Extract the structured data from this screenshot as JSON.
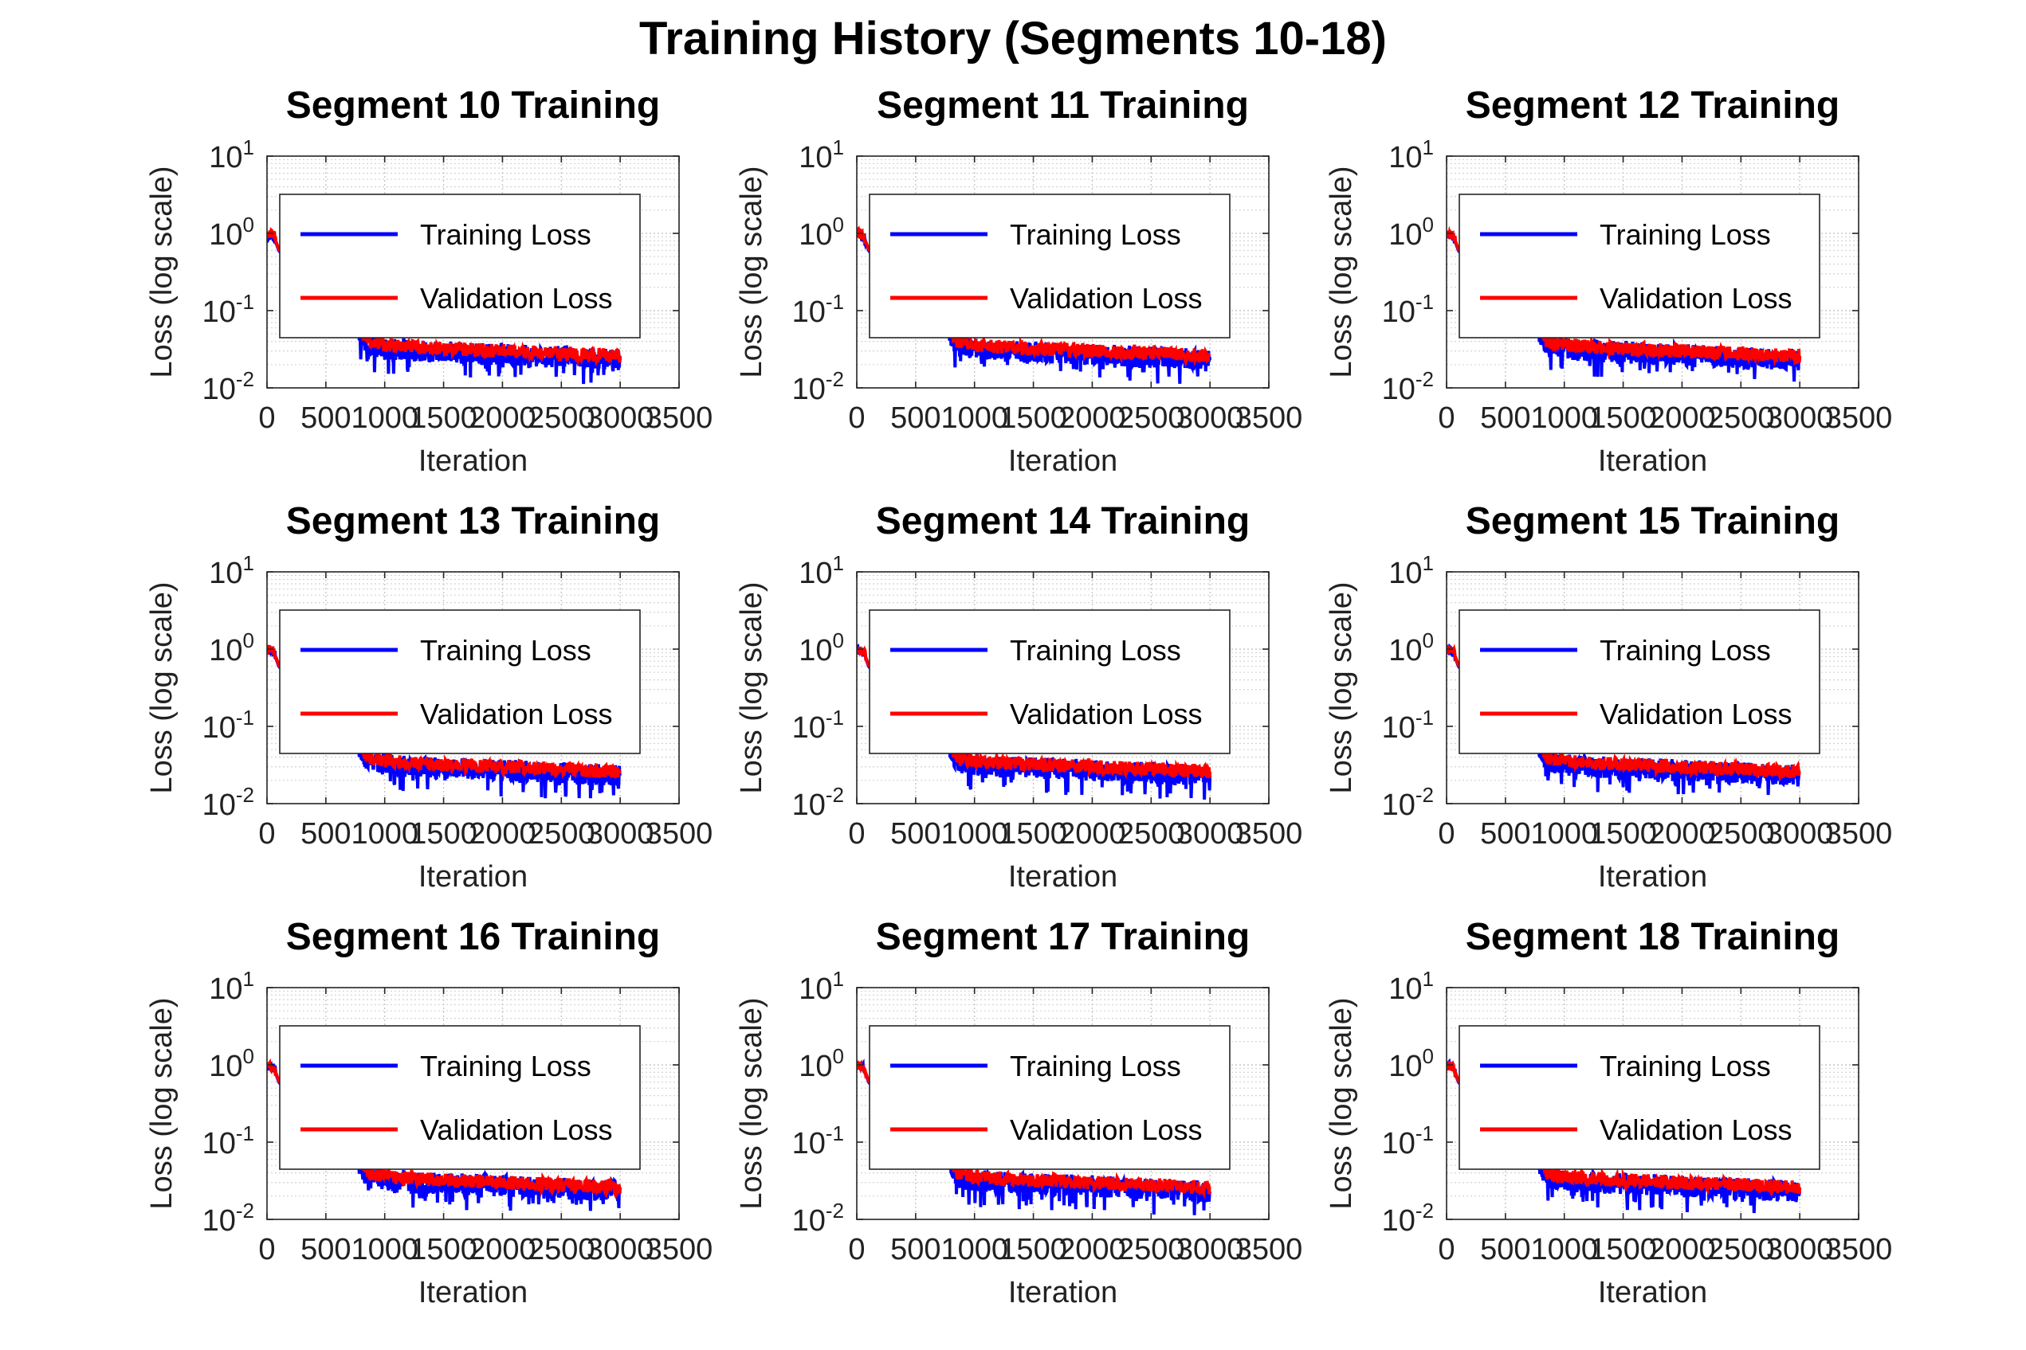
{
  "figure": {
    "title": "Training History (Segments 10-18)"
  },
  "legend": {
    "items": [
      {
        "label": "Training Loss",
        "color": "#0000ff"
      },
      {
        "label": "Validation Loss",
        "color": "#ff0000"
      }
    ]
  },
  "chart_data": [
    {
      "type": "line",
      "title": "Segment 10 Training",
      "xlabel": "Iteration",
      "ylabel": "Loss (log scale)",
      "xlim": [
        0,
        3500
      ],
      "ylim": [
        0.01,
        10
      ],
      "yscale": "log",
      "xticks": [
        "0",
        "500",
        "1000",
        "1500",
        "2000",
        "2500",
        "3000",
        "3500"
      ],
      "yticks": [
        "10^-2",
        "10^-1",
        "10^0",
        "10^1"
      ],
      "grid": true,
      "legend_position": "top-right",
      "series": [
        {
          "name": "Training Loss",
          "color": "#0000ff",
          "x": [
            0,
            30,
            60,
            100,
            500,
            800,
            850,
            1000,
            1200,
            1500,
            1800,
            2000,
            2200,
            2500,
            2700,
            3000
          ],
          "y": [
            1.0,
            0.95,
            0.9,
            0.6,
            0.12,
            0.05,
            0.035,
            0.032,
            0.03,
            0.029,
            0.028,
            0.027,
            0.026,
            0.025,
            0.024,
            0.023
          ]
        },
        {
          "name": "Validation Loss",
          "color": "#ff0000",
          "x": [
            0,
            30,
            60,
            100,
            500,
            800,
            850,
            1000,
            1200,
            1500,
            1800,
            2000,
            2200,
            2500,
            2700,
            3000
          ],
          "y": [
            1.0,
            0.97,
            0.93,
            0.62,
            0.13,
            0.055,
            0.04,
            0.036,
            0.034,
            0.032,
            0.031,
            0.03,
            0.029,
            0.028,
            0.027,
            0.026
          ]
        }
      ]
    },
    {
      "type": "line",
      "title": "Segment 11 Training",
      "xlabel": "Iteration",
      "ylabel": "Loss (log scale)",
      "xlim": [
        0,
        3500
      ],
      "ylim": [
        0.01,
        10
      ],
      "yscale": "log",
      "xticks": [
        "0",
        "500",
        "1000",
        "1500",
        "2000",
        "2500",
        "3000",
        "3500"
      ],
      "yticks": [
        "10^-2",
        "10^-1",
        "10^0",
        "10^1"
      ],
      "grid": true,
      "legend_position": "top-right",
      "series": [
        {
          "name": "Training Loss",
          "color": "#0000ff",
          "x": [
            0,
            30,
            60,
            100,
            500,
            800,
            850,
            1000,
            1200,
            1500,
            1800,
            2000,
            2200,
            2500,
            2700,
            3000
          ],
          "y": [
            1.0,
            0.95,
            0.9,
            0.6,
            0.12,
            0.05,
            0.035,
            0.032,
            0.03,
            0.029,
            0.028,
            0.027,
            0.026,
            0.025,
            0.024,
            0.023
          ]
        },
        {
          "name": "Validation Loss",
          "color": "#ff0000",
          "x": [
            0,
            30,
            60,
            100,
            500,
            800,
            850,
            1000,
            1200,
            1500,
            1800,
            2000,
            2200,
            2500,
            2700,
            3000
          ],
          "y": [
            1.0,
            0.97,
            0.93,
            0.62,
            0.13,
            0.055,
            0.04,
            0.036,
            0.034,
            0.032,
            0.031,
            0.03,
            0.029,
            0.028,
            0.027,
            0.026
          ]
        }
      ]
    },
    {
      "type": "line",
      "title": "Segment 12 Training",
      "xlabel": "Iteration",
      "ylabel": "Loss (log scale)",
      "xlim": [
        0,
        3500
      ],
      "ylim": [
        0.01,
        10
      ],
      "yscale": "log",
      "xticks": [
        "0",
        "500",
        "1000",
        "1500",
        "2000",
        "2500",
        "3000",
        "3500"
      ],
      "yticks": [
        "10^-2",
        "10^-1",
        "10^0",
        "10^1"
      ],
      "grid": true,
      "legend_position": "top-right",
      "series": [
        {
          "name": "Training Loss",
          "color": "#0000ff",
          "x": [
            0,
            30,
            60,
            100,
            500,
            800,
            850,
            1000,
            1200,
            1500,
            1800,
            2000,
            2200,
            2500,
            2700,
            3000
          ],
          "y": [
            1.0,
            0.95,
            0.9,
            0.6,
            0.12,
            0.05,
            0.035,
            0.032,
            0.03,
            0.029,
            0.028,
            0.027,
            0.026,
            0.025,
            0.024,
            0.023
          ]
        },
        {
          "name": "Validation Loss",
          "color": "#ff0000",
          "x": [
            0,
            30,
            60,
            100,
            500,
            800,
            850,
            1000,
            1200,
            1500,
            1800,
            2000,
            2200,
            2500,
            2700,
            3000
          ],
          "y": [
            1.0,
            0.97,
            0.93,
            0.62,
            0.13,
            0.055,
            0.04,
            0.036,
            0.034,
            0.032,
            0.031,
            0.03,
            0.029,
            0.028,
            0.027,
            0.026
          ]
        }
      ]
    },
    {
      "type": "line",
      "title": "Segment 13 Training",
      "xlabel": "Iteration",
      "ylabel": "Loss (log scale)",
      "xlim": [
        0,
        3500
      ],
      "ylim": [
        0.01,
        10
      ],
      "yscale": "log",
      "xticks": [
        "0",
        "500",
        "1000",
        "1500",
        "2000",
        "2500",
        "3000",
        "3500"
      ],
      "yticks": [
        "10^-2",
        "10^-1",
        "10^0",
        "10^1"
      ],
      "grid": true,
      "legend_position": "top-right",
      "series": [
        {
          "name": "Training Loss",
          "color": "#0000ff",
          "x": [
            0,
            30,
            60,
            100,
            500,
            800,
            850,
            1000,
            1200,
            1500,
            1800,
            2000,
            2200,
            2500,
            2700,
            3000
          ],
          "y": [
            1.0,
            0.95,
            0.9,
            0.6,
            0.12,
            0.05,
            0.035,
            0.032,
            0.03,
            0.029,
            0.028,
            0.027,
            0.026,
            0.025,
            0.024,
            0.023
          ]
        },
        {
          "name": "Validation Loss",
          "color": "#ff0000",
          "x": [
            0,
            30,
            60,
            100,
            500,
            800,
            850,
            1000,
            1200,
            1500,
            1800,
            2000,
            2200,
            2500,
            2700,
            3000
          ],
          "y": [
            1.0,
            0.97,
            0.93,
            0.62,
            0.13,
            0.055,
            0.04,
            0.036,
            0.034,
            0.032,
            0.031,
            0.03,
            0.029,
            0.028,
            0.027,
            0.026
          ]
        }
      ]
    },
    {
      "type": "line",
      "title": "Segment 14 Training",
      "xlabel": "Iteration",
      "ylabel": "Loss (log scale)",
      "xlim": [
        0,
        3500
      ],
      "ylim": [
        0.01,
        10
      ],
      "yscale": "log",
      "xticks": [
        "0",
        "500",
        "1000",
        "1500",
        "2000",
        "2500",
        "3000",
        "3500"
      ],
      "yticks": [
        "10^-2",
        "10^-1",
        "10^0",
        "10^1"
      ],
      "grid": true,
      "legend_position": "top-right",
      "series": [
        {
          "name": "Training Loss",
          "color": "#0000ff",
          "x": [
            0,
            30,
            60,
            100,
            500,
            800,
            850,
            1000,
            1200,
            1500,
            1800,
            2000,
            2200,
            2500,
            2700,
            3000
          ],
          "y": [
            1.0,
            0.95,
            0.9,
            0.6,
            0.12,
            0.05,
            0.035,
            0.032,
            0.03,
            0.029,
            0.028,
            0.027,
            0.026,
            0.025,
            0.024,
            0.023
          ]
        },
        {
          "name": "Validation Loss",
          "color": "#ff0000",
          "x": [
            0,
            30,
            60,
            100,
            500,
            800,
            850,
            1000,
            1200,
            1500,
            1800,
            2000,
            2200,
            2500,
            2700,
            3000
          ],
          "y": [
            1.0,
            0.97,
            0.93,
            0.62,
            0.13,
            0.055,
            0.04,
            0.036,
            0.034,
            0.032,
            0.031,
            0.03,
            0.029,
            0.028,
            0.027,
            0.026
          ]
        }
      ]
    },
    {
      "type": "line",
      "title": "Segment 15 Training",
      "xlabel": "Iteration",
      "ylabel": "Loss (log scale)",
      "xlim": [
        0,
        3500
      ],
      "ylim": [
        0.01,
        10
      ],
      "yscale": "log",
      "xticks": [
        "0",
        "500",
        "1000",
        "1500",
        "2000",
        "2500",
        "3000",
        "3500"
      ],
      "yticks": [
        "10^-2",
        "10^-1",
        "10^0",
        "10^1"
      ],
      "grid": true,
      "legend_position": "top-right",
      "series": [
        {
          "name": "Training Loss",
          "color": "#0000ff",
          "x": [
            0,
            30,
            60,
            100,
            500,
            800,
            850,
            1000,
            1200,
            1500,
            1800,
            2000,
            2200,
            2500,
            2700,
            3000
          ],
          "y": [
            1.0,
            0.95,
            0.9,
            0.6,
            0.12,
            0.05,
            0.035,
            0.032,
            0.03,
            0.029,
            0.028,
            0.027,
            0.026,
            0.025,
            0.024,
            0.023
          ]
        },
        {
          "name": "Validation Loss",
          "color": "#ff0000",
          "x": [
            0,
            30,
            60,
            100,
            500,
            800,
            850,
            1000,
            1200,
            1500,
            1800,
            2000,
            2200,
            2500,
            2700,
            3000
          ],
          "y": [
            1.0,
            0.97,
            0.93,
            0.62,
            0.13,
            0.055,
            0.04,
            0.036,
            0.034,
            0.032,
            0.031,
            0.03,
            0.029,
            0.028,
            0.027,
            0.026
          ]
        }
      ]
    },
    {
      "type": "line",
      "title": "Segment 16 Training",
      "xlabel": "Iteration",
      "ylabel": "Loss (log scale)",
      "xlim": [
        0,
        3500
      ],
      "ylim": [
        0.01,
        10
      ],
      "yscale": "log",
      "xticks": [
        "0",
        "500",
        "1000",
        "1500",
        "2000",
        "2500",
        "3000",
        "3500"
      ],
      "yticks": [
        "10^-2",
        "10^-1",
        "10^0",
        "10^1"
      ],
      "grid": true,
      "legend_position": "top-right",
      "series": [
        {
          "name": "Training Loss",
          "color": "#0000ff",
          "x": [
            0,
            30,
            60,
            100,
            500,
            800,
            850,
            1000,
            1200,
            1500,
            1800,
            2000,
            2200,
            2500,
            2700,
            3000
          ],
          "y": [
            1.0,
            0.95,
            0.9,
            0.6,
            0.12,
            0.05,
            0.035,
            0.032,
            0.03,
            0.029,
            0.028,
            0.027,
            0.026,
            0.025,
            0.024,
            0.023
          ]
        },
        {
          "name": "Validation Loss",
          "color": "#ff0000",
          "x": [
            0,
            30,
            60,
            100,
            500,
            800,
            850,
            1000,
            1200,
            1500,
            1800,
            2000,
            2200,
            2500,
            2700,
            3000
          ],
          "y": [
            1.0,
            0.97,
            0.93,
            0.62,
            0.13,
            0.055,
            0.04,
            0.036,
            0.034,
            0.032,
            0.031,
            0.03,
            0.029,
            0.028,
            0.027,
            0.026
          ]
        }
      ]
    },
    {
      "type": "line",
      "title": "Segment 17 Training",
      "xlabel": "Iteration",
      "ylabel": "Loss (log scale)",
      "xlim": [
        0,
        3500
      ],
      "ylim": [
        0.01,
        10
      ],
      "yscale": "log",
      "xticks": [
        "0",
        "500",
        "1000",
        "1500",
        "2000",
        "2500",
        "3000",
        "3500"
      ],
      "yticks": [
        "10^-2",
        "10^-1",
        "10^0",
        "10^1"
      ],
      "grid": true,
      "legend_position": "top-right",
      "series": [
        {
          "name": "Training Loss",
          "color": "#0000ff",
          "x": [
            0,
            30,
            60,
            100,
            500,
            800,
            850,
            1000,
            1200,
            1500,
            1800,
            2000,
            2200,
            2500,
            2700,
            3000
          ],
          "y": [
            1.0,
            0.95,
            0.9,
            0.6,
            0.12,
            0.05,
            0.035,
            0.032,
            0.03,
            0.029,
            0.028,
            0.027,
            0.026,
            0.025,
            0.024,
            0.023
          ]
        },
        {
          "name": "Validation Loss",
          "color": "#ff0000",
          "x": [
            0,
            30,
            60,
            100,
            500,
            800,
            850,
            1000,
            1200,
            1500,
            1800,
            2000,
            2200,
            2500,
            2700,
            3000
          ],
          "y": [
            1.0,
            0.97,
            0.93,
            0.62,
            0.13,
            0.055,
            0.04,
            0.036,
            0.034,
            0.032,
            0.031,
            0.03,
            0.029,
            0.028,
            0.027,
            0.026
          ]
        }
      ]
    },
    {
      "type": "line",
      "title": "Segment 18 Training",
      "xlabel": "Iteration",
      "ylabel": "Loss (log scale)",
      "xlim": [
        0,
        3500
      ],
      "ylim": [
        0.01,
        10
      ],
      "yscale": "log",
      "xticks": [
        "0",
        "500",
        "1000",
        "1500",
        "2000",
        "2500",
        "3000",
        "3500"
      ],
      "yticks": [
        "10^-2",
        "10^-1",
        "10^0",
        "10^1"
      ],
      "grid": true,
      "legend_position": "top-right",
      "series": [
        {
          "name": "Training Loss",
          "color": "#0000ff",
          "x": [
            0,
            30,
            60,
            100,
            500,
            800,
            850,
            1000,
            1200,
            1500,
            1800,
            2000,
            2200,
            2500,
            2700,
            3000
          ],
          "y": [
            1.0,
            0.95,
            0.9,
            0.6,
            0.12,
            0.05,
            0.035,
            0.032,
            0.03,
            0.029,
            0.028,
            0.027,
            0.026,
            0.025,
            0.024,
            0.023
          ]
        },
        {
          "name": "Validation Loss",
          "color": "#ff0000",
          "x": [
            0,
            30,
            60,
            100,
            500,
            800,
            850,
            1000,
            1200,
            1500,
            1800,
            2000,
            2200,
            2500,
            2700,
            3000
          ],
          "y": [
            1.0,
            0.97,
            0.93,
            0.62,
            0.13,
            0.055,
            0.04,
            0.036,
            0.034,
            0.032,
            0.031,
            0.03,
            0.029,
            0.028,
            0.027,
            0.026
          ]
        }
      ]
    }
  ]
}
